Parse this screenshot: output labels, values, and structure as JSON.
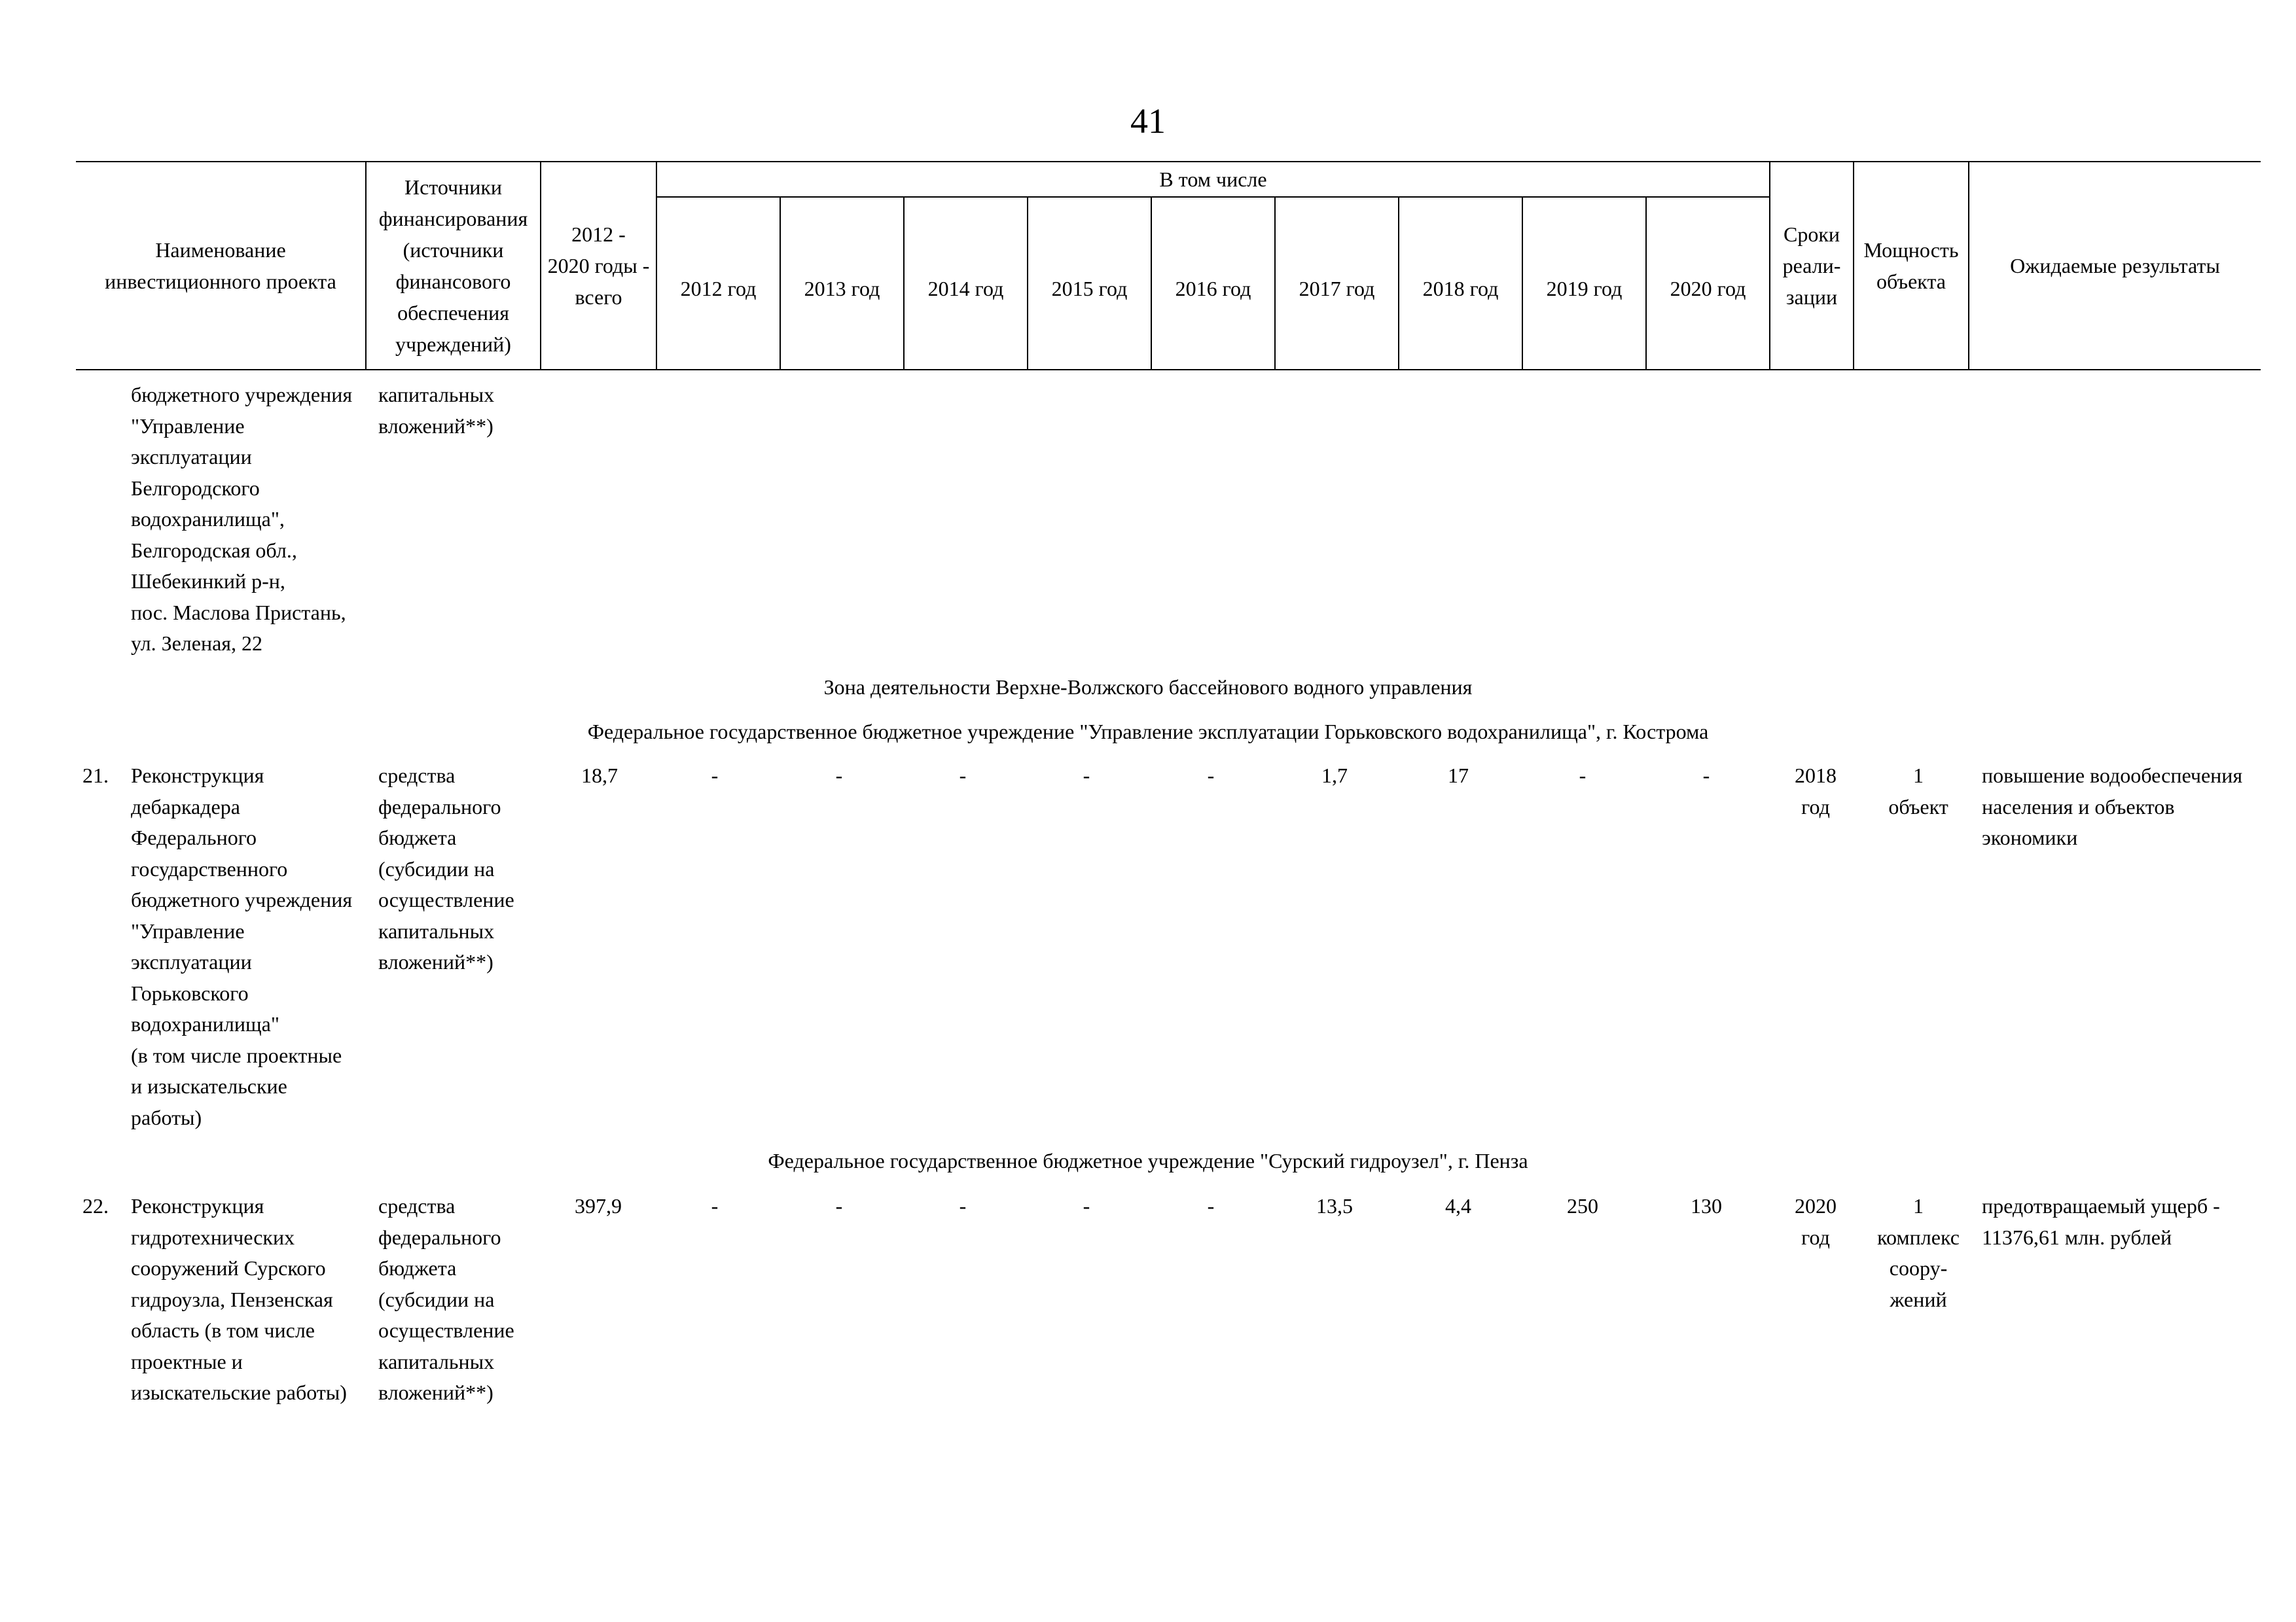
{
  "page_number": "41",
  "header": {
    "name_col": "Наименование\nинвестиционного проекта",
    "sources_col": "Источники\nфинансирования\n(источники\nфинансового\nобеспечения\nучреждений)",
    "total_col": "2012 -\n2020 годы -\nвсего",
    "including": "В том числе",
    "years": [
      "2012 год",
      "2013 год",
      "2014 год",
      "2015 год",
      "2016 год",
      "2017 год",
      "2018 год",
      "2019 год",
      "2020 год"
    ],
    "terms_col": "Сроки\nреали-\nзации",
    "capacity_col": "Мощность\nобъекта",
    "results_col": "Ожидаемые результаты"
  },
  "continuation": {
    "name": "бюджетного учреждения\n\"Управление\nэксплуатации\nБелгородского\nводохранилища\",\nБелгородская обл.,\nШебекинкий р-н,\nпос. Маслова Пристань,\nул. Зеленая, 22",
    "source": "капитальных\nвложений**)"
  },
  "sections": {
    "zone": "Зона деятельности Верхне-Волжского бассейнового водного управления",
    "org1": "Федеральное государственное бюджетное учреждение \"Управление эксплуатации Горьковского водохранилища\", г. Кострома",
    "org2": "Федеральное государственное бюджетное учреждение \"Сурский гидроузел\", г. Пенза"
  },
  "rows": [
    {
      "number": "21.",
      "name": "Реконструкция\nдебаркадера\nФедерального\nгосударственного\nбюджетного учреждения\n\"Управление\nэксплуатации\nГорьковского\nводохранилища\"\n(в том числе проектные\nи изыскательские\nработы)",
      "source": "средства\nфедерального\nбюджета\n(субсидии на\nосуществление\nкапитальных\nвложений**)",
      "total": "18,7",
      "years": [
        "-",
        "-",
        "-",
        "-",
        "-",
        "1,7",
        "17",
        "-",
        "-"
      ],
      "term": "2018\nгод",
      "capacity": "1\nобъект",
      "result": "повышение водообеспечения\nнаселения и объектов\nэкономики"
    },
    {
      "number": "22.",
      "name": "Реконструкция\nгидротехнических\nсооружений Сурского\nгидроузла, Пензенская\nобласть (в том числе\nпроектные и\nизыскательские работы)",
      "source": "средства\nфедерального\nбюджета\n(субсидии на\nосуществление\nкапитальных\nвложений**)",
      "total": "397,9",
      "years": [
        "-",
        "-",
        "-",
        "-",
        "-",
        "13,5",
        "4,4",
        "250",
        "130"
      ],
      "term": "2020\nгод",
      "capacity": "1\nкомплекс\nсоору-\nжений",
      "result": "предотвращаемый ущерб -\n11376,61 млн. рублей"
    }
  ]
}
